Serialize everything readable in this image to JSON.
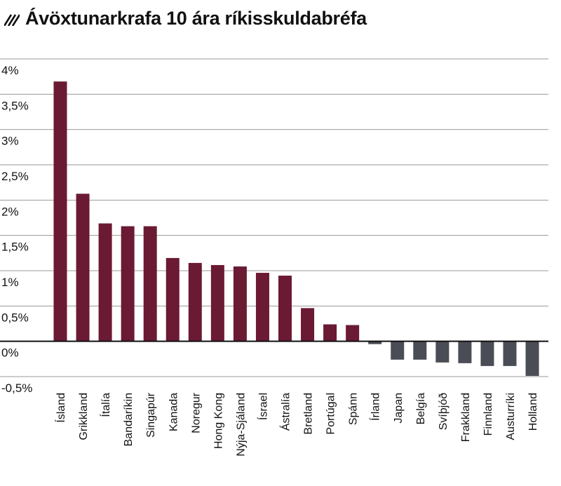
{
  "title": "Ávöxtunarkrafa 10 ára ríkisskuldabréfa",
  "title_icon": "diagonal-stripes-icon",
  "chart_data": {
    "type": "bar",
    "title": "Ávöxtunarkrafa 10 ára ríkisskuldabréfa",
    "xlabel": "",
    "ylabel": "",
    "ylim": [
      -0.5,
      4
    ],
    "grid": true,
    "legend": "none",
    "y_ticks": [
      "4%",
      "3,5%",
      "3%",
      "2,5%",
      "2%",
      "1,5%",
      "1%",
      "0,5%",
      "0%",
      "-0,5%"
    ],
    "y_tick_values": [
      4,
      3.5,
      3,
      2.5,
      2,
      1.5,
      1,
      0.5,
      0,
      -0.5
    ],
    "categories": [
      "Ísland",
      "Grikkland",
      "Ítalía",
      "Bandaríkin",
      "Singapúr",
      "Kanada",
      "Noregur",
      "Hong Kong",
      "Nýja-Sjáland",
      "Ísrael",
      "Ástralía",
      "Bretland",
      "Portúgal",
      "Spánn",
      "Írland",
      "Japan",
      "Belgía",
      "Svíþjóð",
      "Frakkland",
      "Finnland",
      "Austurríki",
      "Holland"
    ],
    "values": [
      3.68,
      2.09,
      1.67,
      1.63,
      1.63,
      1.18,
      1.11,
      1.08,
      1.06,
      0.97,
      0.93,
      0.47,
      0.24,
      0.23,
      -0.04,
      -0.26,
      -0.26,
      -0.3,
      -0.31,
      -0.35,
      -0.35,
      -0.49
    ],
    "colors": {
      "positive": "#6b1a33",
      "negative": "#4a4d55",
      "grid": "#9a9a9a",
      "axis": "#111111"
    }
  }
}
